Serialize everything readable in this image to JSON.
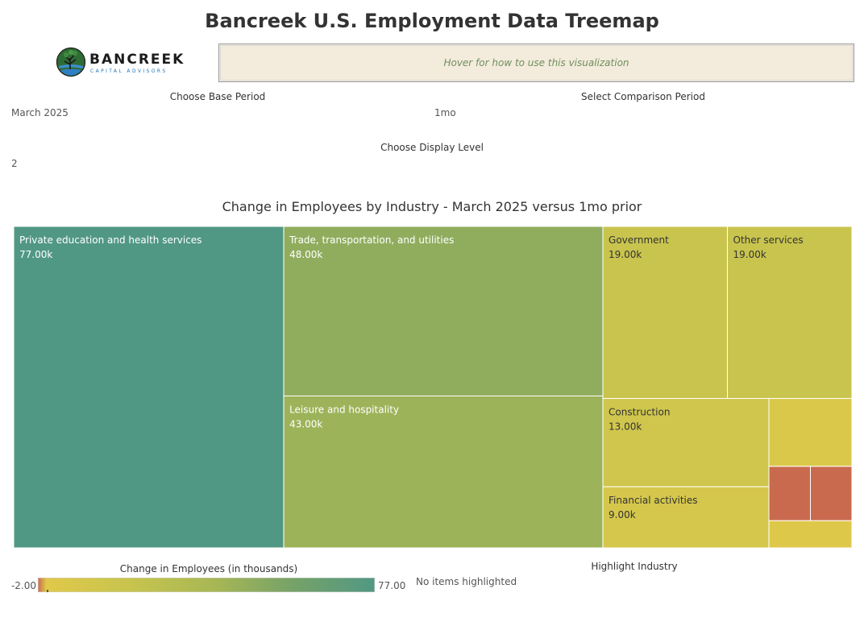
{
  "page": {
    "title": "Bancreek U.S. Employment Data Treemap",
    "logo": {
      "wordmark": "BANCREEK",
      "subtitle": "CAPITAL ADVISORS"
    },
    "hover_hint": "Hover for how to use this visualization"
  },
  "filters": {
    "base_period": {
      "label": "Choose Base Period",
      "value": "March 2025"
    },
    "comparison_period": {
      "label": "Select Comparison Period",
      "value": "1mo"
    },
    "display_level": {
      "label": "Choose Display Level",
      "value": "2"
    },
    "highlight_industry": {
      "label": "Highlight Industry",
      "value": "No items highlighted"
    }
  },
  "legend": {
    "title": "Change in Employees (in thousands)",
    "min_label": "-2.00",
    "max_label": "77.00",
    "min": -2,
    "max": 77,
    "colors": [
      "#c96a4f",
      "#e0c94a",
      "#c8c44e",
      "#a9b854",
      "#76a268",
      "#519884"
    ]
  },
  "chart_data": {
    "type": "treemap",
    "title": "Change in Employees by Industry - March 2025 versus 1mo prior",
    "unit": "thousands of employees",
    "items": [
      {
        "name": "Private education and health services",
        "value": 77.0,
        "value_label": "77.00k"
      },
      {
        "name": "Trade, transportation, and utilities",
        "value": 48.0,
        "value_label": "48.00k"
      },
      {
        "name": "Leisure and hospitality",
        "value": 43.0,
        "value_label": "43.00k"
      },
      {
        "name": "Government",
        "value": 19.0,
        "value_label": "19.00k"
      },
      {
        "name": "Other services",
        "value": 19.0,
        "value_label": "19.00k"
      },
      {
        "name": "Construction",
        "value": 13.0,
        "value_label": "13.00k"
      },
      {
        "name": "Financial activities",
        "value": 9.0,
        "value_label": "9.00k"
      },
      {
        "name": "",
        "value": 5.0,
        "value_label": ""
      },
      {
        "name": "",
        "value": -2.0,
        "value_label": ""
      },
      {
        "name": "",
        "value": -2.0,
        "value_label": ""
      },
      {
        "name": "",
        "value": 2.0,
        "value_label": ""
      }
    ]
  }
}
